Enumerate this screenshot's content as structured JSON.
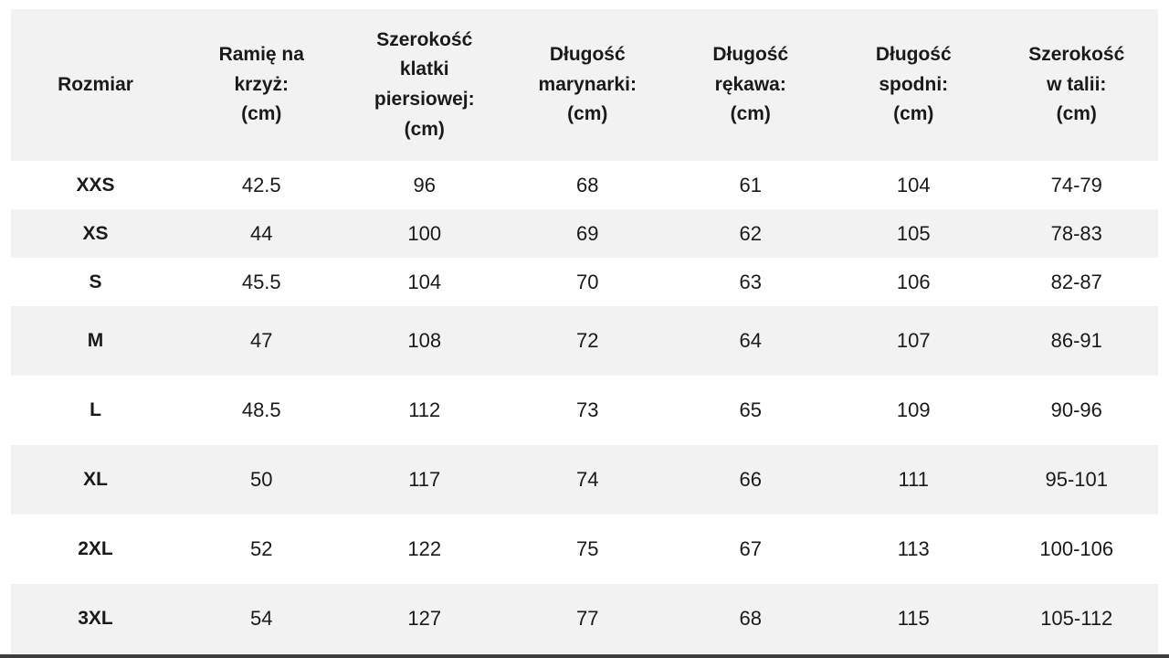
{
  "colors": {
    "header_bg": "#f2f2f2",
    "row_bg": "#ffffff",
    "row_alt_bg": "#f2f2f2",
    "text": "#1a1a1a",
    "bottom_bar": "#3d3d3d",
    "page_bg": "#ffffff"
  },
  "chart_data": {
    "type": "table",
    "title": "",
    "columns": [
      "Rozmiar",
      "Ramię na krzyż: (cm)",
      "Szerokość klatki piersiowej: (cm)",
      "Długość marynarki: (cm)",
      "Długość rękawa: (cm)",
      "Długość spodni: (cm)",
      "Szerokość w talii: (cm)"
    ],
    "rows": [
      [
        "XXS",
        "42.5",
        "96",
        "68",
        "61",
        "104",
        "74-79"
      ],
      [
        "XS",
        "44",
        "100",
        "69",
        "62",
        "105",
        "78-83"
      ],
      [
        "S",
        "45.5",
        "104",
        "70",
        "63",
        "106",
        "82-87"
      ],
      [
        "M",
        "47",
        "108",
        "72",
        "64",
        "107",
        "86-91"
      ],
      [
        "L",
        "48.5",
        "112",
        "73",
        "65",
        "109",
        "90-96"
      ],
      [
        "XL",
        "50",
        "117",
        "74",
        "66",
        "111",
        "95-101"
      ],
      [
        "2XL",
        "52",
        "122",
        "75",
        "67",
        "113",
        "100-106"
      ],
      [
        "3XL",
        "54",
        "127",
        "77",
        "68",
        "115",
        "105-112"
      ]
    ]
  },
  "table": {
    "header_display": [
      "Rozmiar",
      "Ramię na\nkrzyż:\n(cm)",
      "Szerokość\nklatki\npiersiowej:\n(cm)",
      "Długość\nmarynarki:\n(cm)",
      "Długość\nrękawa:\n(cm)",
      "Długość\nspodni:\n(cm)",
      "Szerokość\nw talii:\n(cm)"
    ]
  }
}
